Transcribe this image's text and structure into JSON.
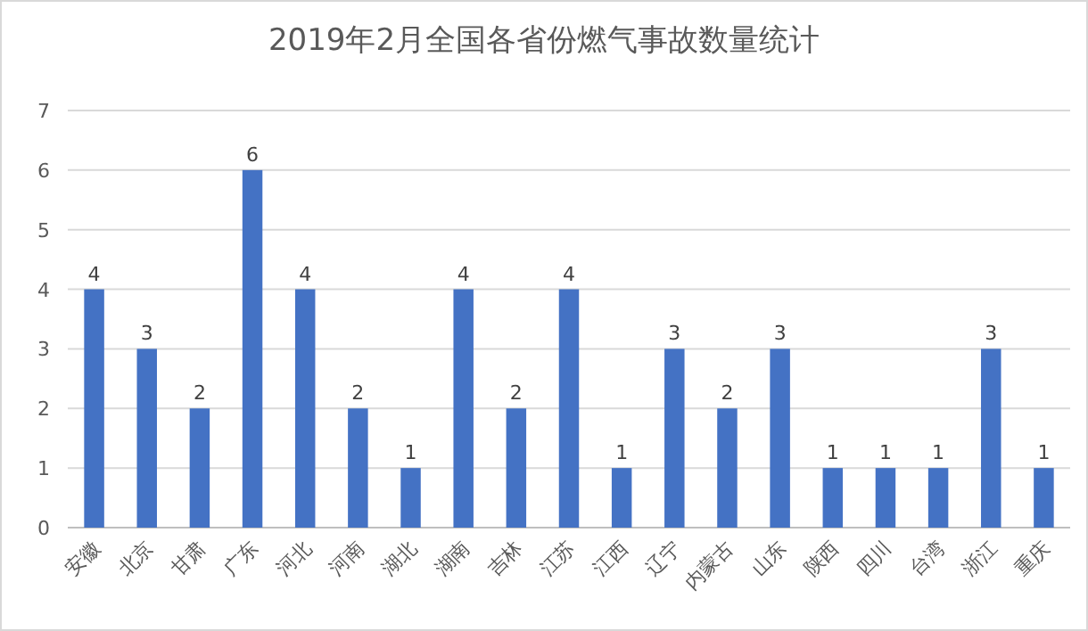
{
  "chart_data": {
    "type": "bar",
    "title": "2019年2月全国各省份燃气事故数量统计",
    "categories": [
      "安徽",
      "北京",
      "甘肃",
      "广东",
      "河北",
      "河南",
      "湖北",
      "湖南",
      "吉林",
      "江苏",
      "江西",
      "辽宁",
      "内蒙古",
      "山东",
      "陕西",
      "四川",
      "台湾",
      "浙江",
      "重庆"
    ],
    "values": [
      4,
      3,
      2,
      6,
      4,
      2,
      1,
      4,
      2,
      4,
      1,
      3,
      2,
      3,
      1,
      1,
      1,
      3,
      1
    ],
    "color": "#4472c4",
    "ylim": [
      0,
      7
    ],
    "yticks": [
      0,
      1,
      2,
      3,
      4,
      5,
      6,
      7
    ],
    "grid": "y",
    "data_labels": true
  }
}
